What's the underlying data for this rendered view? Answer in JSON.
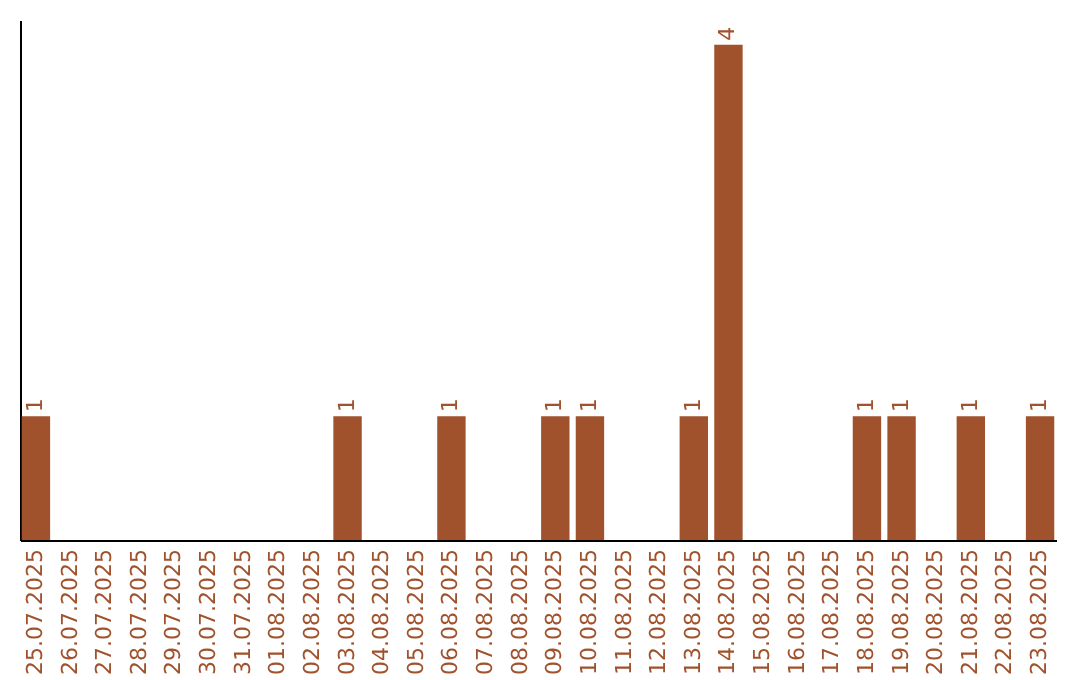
{
  "chart_data": {
    "type": "bar",
    "categories": [
      "25.07.2025",
      "26.07.2025",
      "27.07.2025",
      "28.07.2025",
      "29.07.2025",
      "30.07.2025",
      "31.07.2025",
      "01.08.2025",
      "02.08.2025",
      "03.08.2025",
      "04.08.2025",
      "05.08.2025",
      "06.08.2025",
      "07.08.2025",
      "08.08.2025",
      "09.08.2025",
      "10.08.2025",
      "11.08.2025",
      "12.08.2025",
      "13.08.2025",
      "14.08.2025",
      "15.08.2025",
      "16.08.2025",
      "17.08.2025",
      "18.08.2025",
      "19.08.2025",
      "20.08.2025",
      "21.08.2025",
      "22.08.2025",
      "23.08.2025"
    ],
    "values": [
      1,
      0,
      0,
      0,
      0,
      0,
      0,
      0,
      0,
      1,
      0,
      0,
      1,
      0,
      0,
      1,
      1,
      0,
      0,
      1,
      4,
      0,
      0,
      0,
      1,
      1,
      0,
      1,
      0,
      1
    ],
    "value_labels": [
      "1",
      null,
      null,
      null,
      null,
      null,
      null,
      null,
      null,
      "1",
      null,
      null,
      "1",
      null,
      null,
      "1",
      "1",
      null,
      null,
      "1",
      "4",
      null,
      null,
      null,
      "1",
      "1",
      null,
      "1",
      null,
      "1"
    ],
    "color": "#a0522d",
    "ylim": [
      0,
      4.2
    ],
    "tick_labels": "x"
  }
}
